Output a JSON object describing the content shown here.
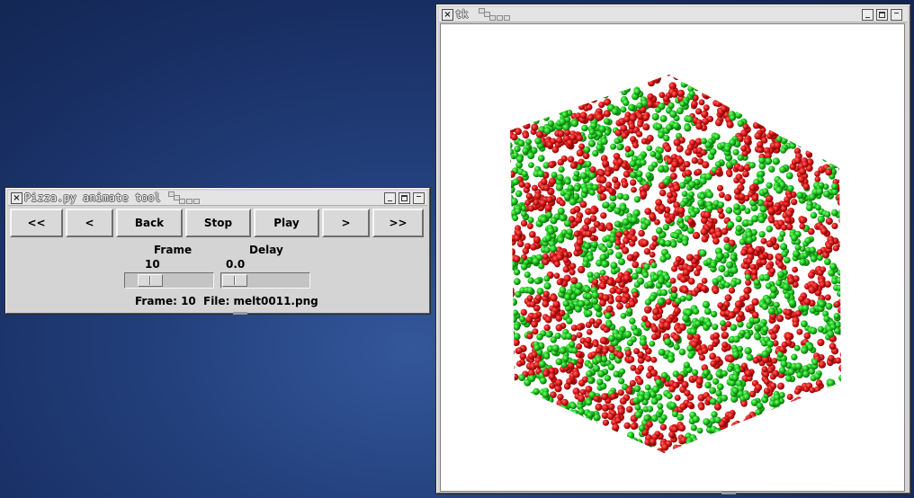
{
  "animate_window": {
    "title": "Pizza.py animate tool",
    "buttons": [
      {
        "label": "<<"
      },
      {
        "label": "<"
      },
      {
        "label": "Back"
      },
      {
        "label": "Stop"
      },
      {
        "label": "Play"
      },
      {
        "label": ">"
      },
      {
        "label": ">>"
      }
    ],
    "frame_label": "Frame",
    "frame_value": "10",
    "delay_label": "Delay",
    "delay_value": "0.0",
    "status_frame": "Frame: 10",
    "status_file": "File: melt0011.png"
  },
  "image_window": {
    "title": "tk",
    "image": {
      "description_colors": {
        "red": "#cc1111",
        "green": "#17b517"
      }
    }
  },
  "colors": {
    "window_bg": "#d4d4d4",
    "desktop": "#1f3a74"
  }
}
